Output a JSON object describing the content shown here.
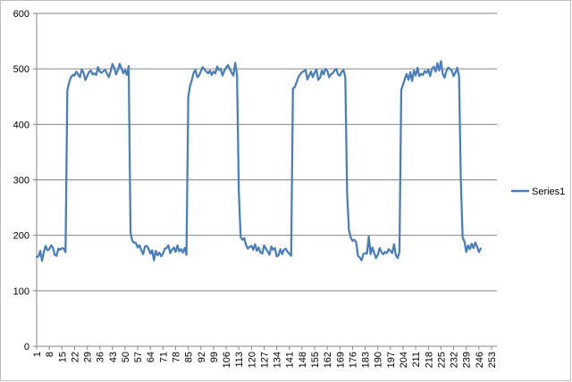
{
  "chart_data": {
    "type": "line",
    "title": "",
    "xlabel": "",
    "ylabel": "",
    "ylim": [
      0,
      600
    ],
    "yticks": [
      0,
      100,
      200,
      300,
      400,
      500,
      600
    ],
    "xticks": [
      1,
      8,
      15,
      22,
      29,
      36,
      43,
      50,
      57,
      64,
      71,
      78,
      85,
      92,
      99,
      106,
      113,
      120,
      127,
      134,
      141,
      148,
      155,
      162,
      169,
      176,
      183,
      190,
      197,
      204,
      211,
      218,
      225,
      232,
      239,
      246,
      253
    ],
    "x_count": 256,
    "grid": "horizontal",
    "legend": "right",
    "series": [
      {
        "name": "Series1",
        "color": "#4a7ebb",
        "values": [
          161,
          162,
          172,
          154,
          170,
          181,
          173,
          175,
          182,
          178,
          165,
          163,
          176,
          174,
          177,
          176,
          170,
          460,
          476,
          485,
          489,
          488,
          495,
          490,
          485,
          499,
          493,
          480,
          487,
          494,
          497,
          490,
          492,
          489,
          503,
          495,
          493,
          496,
          498,
          491,
          485,
          496,
          509,
          502,
          490,
          498,
          509,
          501,
          492,
          498,
          489,
          505,
          205,
          190,
          187,
          186,
          178,
          182,
          173,
          166,
          180,
          181,
          176,
          167,
          173,
          155,
          172,
          164,
          169,
          162,
          167,
          176,
          177,
          182,
          168,
          174,
          178,
          170,
          182,
          171,
          175,
          169,
          177,
          165,
          449,
          470,
          480,
          493,
          498,
          485,
          488,
          496,
          503,
          499,
          495,
          492,
          497,
          489,
          495,
          492,
          504,
          498,
          500,
          488,
          497,
          502,
          507,
          500,
          493,
          488,
          511,
          490,
          280,
          197,
          192,
          195,
          183,
          176,
          179,
          181,
          174,
          184,
          172,
          178,
          169,
          167,
          182,
          176,
          171,
          165,
          180,
          174,
          177,
          162,
          164,
          175,
          166,
          174,
          176,
          170,
          167,
          163,
          465,
          467,
          476,
          485,
          490,
          494,
          496,
          498,
          481,
          488,
          495,
          485,
          493,
          499,
          480,
          484,
          497,
          490,
          500,
          497,
          485,
          490,
          492,
          497,
          500,
          490,
          488,
          495,
          498,
          485,
          275,
          210,
          196,
          190,
          192,
          188,
          163,
          160,
          155,
          166,
          168,
          167,
          198,
          166,
          178,
          168,
          159,
          165,
          177,
          170,
          166,
          170,
          168,
          175,
          172,
          168,
          184,
          164,
          159,
          170,
          462,
          472,
          482,
          491,
          480,
          494,
          478,
          497,
          488,
          502,
          487,
          491,
          489,
          496,
          493,
          499,
          487,
          500,
          504,
          495,
          510,
          497,
          514,
          491,
          484,
          496,
          502,
          500,
          497,
          487,
          493,
          502,
          487,
          300,
          196,
          189,
          170,
          182,
          175,
          185,
          177,
          187,
          180,
          170,
          176
        ]
      }
    ]
  }
}
